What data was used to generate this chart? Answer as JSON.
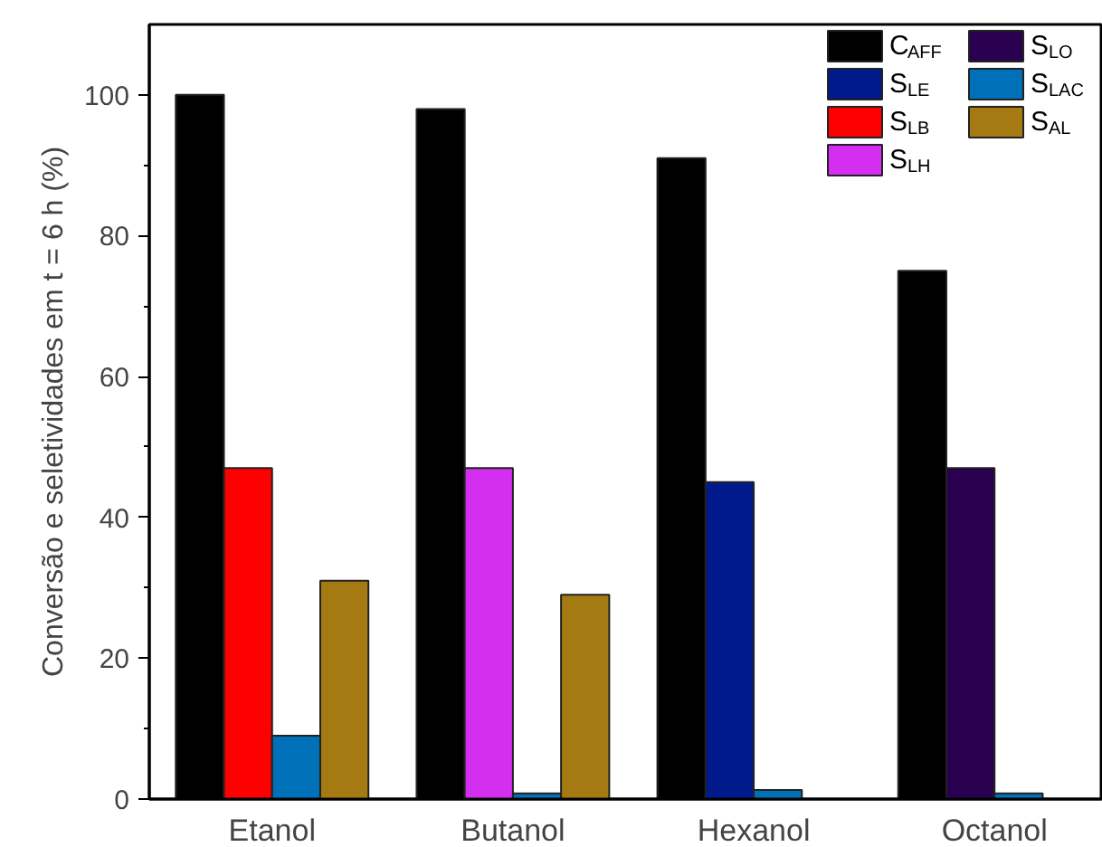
{
  "chart_data": {
    "type": "bar",
    "ylabel": "Conversão e seletividades em t = 6 h (%)",
    "categories": [
      "Etanol",
      "Butanol",
      "Hexanol",
      "Octanol"
    ],
    "series": [
      {
        "name": "C$_{AFF}$",
        "color": "#000000",
        "values": [
          100,
          98,
          91,
          75
        ]
      },
      {
        "name": "S$_{LE}$",
        "color": "#001a8c",
        "values": [
          null,
          null,
          45,
          null
        ]
      },
      {
        "name": "S$_{LB}$",
        "color": "#ff0000",
        "values": [
          47,
          null,
          null,
          null
        ]
      },
      {
        "name": "S$_{LH}$",
        "color": "#d42ff0",
        "values": [
          null,
          47,
          null,
          null
        ]
      },
      {
        "name": "S$_{LO}$",
        "color": "#2a0050",
        "values": [
          null,
          null,
          null,
          47
        ]
      },
      {
        "name": "S$_{LAC}$",
        "color": "#0070b8",
        "values": [
          9,
          0.8,
          1.3,
          0.8
        ]
      },
      {
        "name": "S$_{AL}$",
        "color": "#a57a12",
        "values": [
          31,
          29,
          null,
          null
        ]
      }
    ],
    "ylim": [
      0,
      110
    ],
    "yticks": [
      0,
      {
        "value": 10,
        "label": null
      },
      20,
      {
        "value": 30,
        "label": null
      },
      40,
      {
        "value": 50,
        "label": null
      },
      60,
      {
        "value": 70,
        "label": null
      },
      80,
      {
        "value": 90,
        "label": null
      },
      100
    ],
    "grid": false,
    "legend": "top right"
  }
}
